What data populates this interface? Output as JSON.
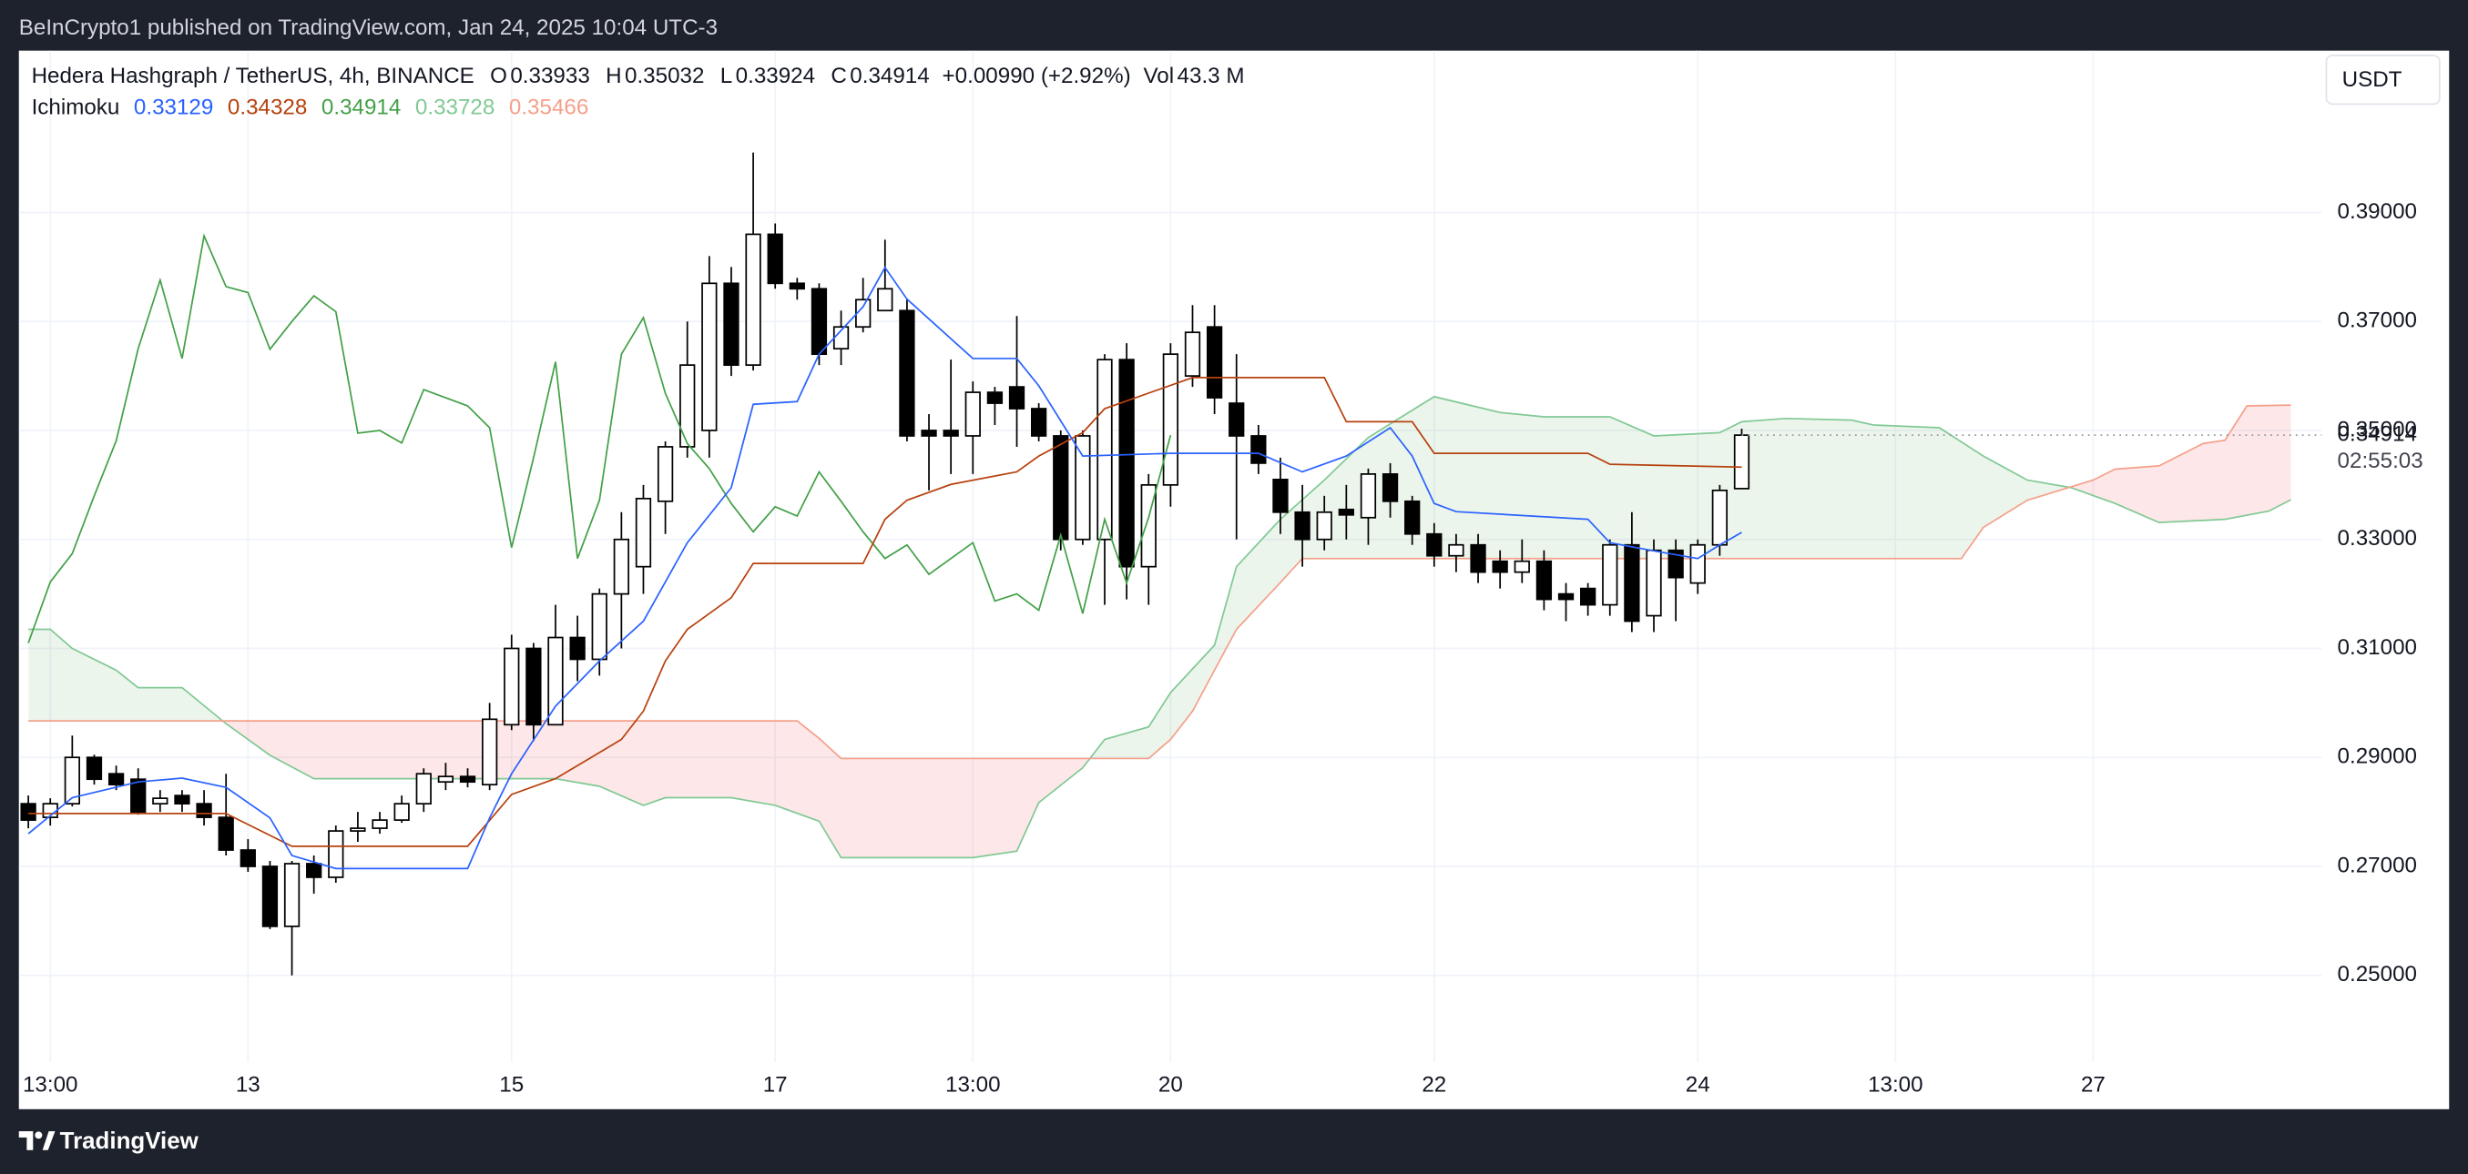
{
  "header": {
    "attribution": "BeInCrypto1 published on TradingView.com, Jan 24, 2025 10:04 UTC-3",
    "brand": "TradingView",
    "currency_button": "USDT"
  },
  "chart_data": {
    "type": "candlestick",
    "title": "Hedera Hashgraph / TetherUS, 4h, BINANCE",
    "ohlc_letters": [
      "O",
      "H",
      "L",
      "C"
    ],
    "change_label": "+0.00990 (+2.92%)",
    "volume_letter": "Vol",
    "volume_label": "43.3 M",
    "indicator": "Ichimoku",
    "countdown": "02:55:03",
    "up_color": "#ffffff",
    "down_color": "#000000",
    "border_color": "#000000",
    "x": [
      0,
      1,
      2,
      3,
      4,
      5,
      6,
      7,
      8,
      9,
      10,
      11,
      12,
      13,
      14,
      15,
      16,
      17,
      18,
      19,
      20,
      21,
      22,
      23,
      24,
      25,
      26,
      27,
      28,
      29,
      30,
      31,
      32,
      33,
      34,
      35,
      36,
      37,
      38,
      39,
      40,
      41,
      42,
      43,
      44,
      45,
      46,
      47,
      48,
      49,
      50,
      51,
      52,
      53,
      54,
      55,
      56,
      57,
      58,
      59,
      60,
      61,
      62,
      63,
      64,
      65,
      66,
      67,
      68,
      69,
      70,
      71,
      72,
      73,
      74,
      75,
      76,
      77,
      78
    ],
    "open": [
      0.2815,
      0.279,
      0.2815,
      0.29,
      0.287,
      0.286,
      0.2815,
      0.283,
      0.2815,
      0.279,
      0.273,
      0.27,
      0.259,
      0.2705,
      0.268,
      0.2765,
      0.277,
      0.2785,
      0.2815,
      0.2855,
      0.2865,
      0.285,
      0.296,
      0.31,
      0.296,
      0.312,
      0.308,
      0.32,
      0.325,
      0.337,
      0.347,
      0.35,
      0.377,
      0.362,
      0.386,
      0.377,
      0.376,
      0.365,
      0.369,
      0.372,
      0.372,
      0.35,
      0.35,
      0.349,
      0.357,
      0.358,
      0.354,
      0.349,
      0.33,
      0.33,
      0.363,
      0.325,
      0.34,
      0.36,
      0.369,
      0.355,
      0.349,
      0.341,
      0.335,
      0.33,
      0.3355,
      0.334,
      0.342,
      0.337,
      0.331,
      0.327,
      0.329,
      0.326,
      0.324,
      0.326,
      0.32,
      0.321,
      0.318,
      0.329,
      0.316,
      0.328,
      0.322,
      0.329,
      0.33933
    ],
    "high": [
      0.283,
      0.2825,
      0.294,
      0.2905,
      0.2885,
      0.288,
      0.284,
      0.284,
      0.284,
      0.287,
      0.275,
      0.271,
      0.271,
      0.272,
      0.2775,
      0.28,
      0.28,
      0.283,
      0.288,
      0.289,
      0.288,
      0.3,
      0.3125,
      0.311,
      0.318,
      0.316,
      0.321,
      0.335,
      0.34,
      0.348,
      0.37,
      0.382,
      0.38,
      0.401,
      0.388,
      0.378,
      0.377,
      0.372,
      0.378,
      0.385,
      0.374,
      0.353,
      0.363,
      0.359,
      0.358,
      0.371,
      0.355,
      0.35,
      0.35,
      0.364,
      0.366,
      0.342,
      0.366,
      0.373,
      0.373,
      0.364,
      0.351,
      0.345,
      0.34,
      0.338,
      0.34,
      0.343,
      0.344,
      0.338,
      0.333,
      0.331,
      0.331,
      0.328,
      0.33,
      0.328,
      0.322,
      0.322,
      0.33,
      0.335,
      0.33,
      0.33,
      0.33,
      0.34,
      0.35032
    ],
    "low": [
      0.277,
      0.2775,
      0.281,
      0.285,
      0.284,
      0.2795,
      0.28,
      0.28,
      0.2775,
      0.272,
      0.269,
      0.2585,
      0.25,
      0.265,
      0.267,
      0.2745,
      0.276,
      0.278,
      0.28,
      0.284,
      0.2845,
      0.284,
      0.295,
      0.293,
      0.296,
      0.304,
      0.305,
      0.31,
      0.32,
      0.331,
      0.345,
      0.345,
      0.36,
      0.361,
      0.376,
      0.374,
      0.362,
      0.362,
      0.368,
      0.372,
      0.348,
      0.339,
      0.342,
      0.342,
      0.351,
      0.347,
      0.348,
      0.328,
      0.329,
      0.318,
      0.319,
      0.318,
      0.336,
      0.358,
      0.353,
      0.33,
      0.342,
      0.331,
      0.325,
      0.328,
      0.33,
      0.329,
      0.334,
      0.329,
      0.325,
      0.324,
      0.322,
      0.321,
      0.322,
      0.317,
      0.315,
      0.316,
      0.316,
      0.313,
      0.313,
      0.315,
      0.32,
      0.327,
      0.33924
    ],
    "close": [
      0.2785,
      0.2815,
      0.29,
      0.286,
      0.285,
      0.28,
      0.2825,
      0.2815,
      0.279,
      0.273,
      0.27,
      0.259,
      0.2705,
      0.268,
      0.2765,
      0.277,
      0.2785,
      0.2815,
      0.287,
      0.2865,
      0.2855,
      0.297,
      0.31,
      0.296,
      0.312,
      0.308,
      0.32,
      0.33,
      0.3375,
      0.347,
      0.362,
      0.377,
      0.362,
      0.386,
      0.377,
      0.376,
      0.364,
      0.369,
      0.374,
      0.376,
      0.349,
      0.349,
      0.349,
      0.357,
      0.355,
      0.354,
      0.349,
      0.33,
      0.349,
      0.363,
      0.325,
      0.34,
      0.364,
      0.368,
      0.356,
      0.349,
      0.344,
      0.335,
      0.33,
      0.335,
      0.3345,
      0.342,
      0.337,
      0.331,
      0.327,
      0.329,
      0.324,
      0.324,
      0.326,
      0.319,
      0.319,
      0.318,
      0.329,
      0.315,
      0.328,
      0.323,
      0.329,
      0.339,
      0.34914
    ],
    "ichimoku": {
      "conversion_line": {
        "color": "#2962ff",
        "x": [
          0,
          2,
          5,
          7,
          9,
          11,
          12,
          14,
          20,
          21,
          22,
          24,
          26,
          28,
          30,
          32,
          33,
          35,
          36,
          38,
          39,
          40,
          43,
          45,
          46,
          48,
          52,
          56,
          58,
          60,
          62,
          63,
          64,
          65,
          71,
          72,
          74,
          76,
          77,
          78
        ],
        "values": [
          0.276,
          0.2826,
          0.2855,
          0.2862,
          0.2845,
          0.2789,
          0.272,
          0.2696,
          0.2696,
          0.2789,
          0.287,
          0.2994,
          0.3077,
          0.315,
          0.3294,
          0.3395,
          0.3548,
          0.3553,
          0.364,
          0.3727,
          0.3799,
          0.3741,
          0.3632,
          0.3632,
          0.3582,
          0.3453,
          0.3458,
          0.3458,
          0.3424,
          0.3453,
          0.3505,
          0.3453,
          0.3366,
          0.3351,
          0.3337,
          0.3294,
          0.3279,
          0.3265,
          0.329,
          0.33129
        ]
      },
      "base_line": {
        "color": "#b7410e",
        "x": [
          0,
          9,
          12,
          20,
          22,
          24,
          27,
          28,
          29,
          30,
          32,
          33,
          38,
          39,
          40,
          42,
          45,
          46,
          48,
          49,
          53,
          59,
          60,
          63,
          64,
          71,
          72,
          78
        ],
        "values": [
          0.2797,
          0.2797,
          0.2737,
          0.2737,
          0.2832,
          0.2861,
          0.2933,
          0.2985,
          0.3077,
          0.3135,
          0.3193,
          0.3256,
          0.3256,
          0.3337,
          0.3372,
          0.3401,
          0.3424,
          0.3453,
          0.3496,
          0.354,
          0.3597,
          0.3597,
          0.3516,
          0.3516,
          0.3458,
          0.3458,
          0.3438,
          0.34328
        ]
      },
      "lagging_span": {
        "color": "#43a047",
        "x": [
          0,
          1,
          2,
          3,
          4,
          5,
          6,
          7,
          8,
          9,
          10,
          11,
          12,
          13,
          14,
          15,
          16,
          17,
          18,
          19,
          20,
          21,
          22,
          23,
          24,
          25,
          26,
          27,
          28,
          29,
          30,
          31,
          32,
          33,
          34,
          35,
          36,
          37,
          38,
          39,
          40,
          41,
          42,
          43,
          44,
          45,
          46,
          47,
          48,
          49,
          50,
          51,
          52
        ],
        "values": [
          0.311,
          0.3222,
          0.3274,
          0.338,
          0.3481,
          0.365,
          0.3776,
          0.3632,
          0.3857,
          0.3764,
          0.3753,
          0.3649,
          0.37,
          0.3747,
          0.3718,
          0.3495,
          0.35,
          0.3477,
          0.3575,
          0.356,
          0.3545,
          0.3505,
          0.3285,
          0.345,
          0.3626,
          0.3265,
          0.3372,
          0.364,
          0.3707,
          0.3568,
          0.3476,
          0.343,
          0.3366,
          0.3314,
          0.336,
          0.3343,
          0.3424,
          0.337,
          0.3314,
          0.3265,
          0.329,
          0.3236,
          0.3265,
          0.3294,
          0.3187,
          0.32,
          0.317,
          0.3308,
          0.3164,
          0.3337,
          0.322,
          0.334,
          0.34914
        ]
      },
      "leading_span_a": {
        "color": "#81c995",
        "x": [
          0,
          1,
          2,
          4,
          5,
          7,
          9,
          11,
          13,
          20,
          24,
          26,
          28,
          29,
          32,
          34,
          36,
          37,
          43,
          45,
          46,
          48,
          49,
          51,
          52,
          54,
          55,
          57,
          59,
          61,
          64,
          67,
          69,
          72,
          74,
          77,
          78,
          80,
          83,
          84,
          87,
          89,
          91,
          93,
          95,
          97,
          100,
          102,
          103
        ],
        "values": [
          0.3135,
          0.3135,
          0.31,
          0.306,
          0.3028,
          0.3028,
          0.2962,
          0.2904,
          0.2861,
          0.2861,
          0.2861,
          0.2847,
          0.2812,
          0.2826,
          0.2826,
          0.2812,
          0.2783,
          0.2716,
          0.2716,
          0.2728,
          0.2817,
          0.2881,
          0.2933,
          0.2956,
          0.3019,
          0.3106,
          0.325,
          0.3337,
          0.3409,
          0.3487,
          0.3562,
          0.3533,
          0.3525,
          0.3525,
          0.349,
          0.3496,
          0.3516,
          0.3522,
          0.3519,
          0.351,
          0.3505,
          0.3453,
          0.3409,
          0.3395,
          0.3366,
          0.3331,
          0.3337,
          0.3352,
          0.33728
        ]
      },
      "leading_span_b": {
        "color": "#f5a08a",
        "x": [
          0,
          9,
          35,
          36,
          37,
          51,
          52,
          53,
          55,
          57,
          58,
          88,
          89,
          91,
          94,
          95,
          97,
          99,
          100,
          101,
          103
        ],
        "values": [
          0.2967,
          0.2967,
          0.2967,
          0.2935,
          0.2898,
          0.2898,
          0.2933,
          0.2985,
          0.3135,
          0.3221,
          0.3265,
          0.3265,
          0.3322,
          0.3372,
          0.3409,
          0.3429,
          0.3435,
          0.3476,
          0.3482,
          0.3545,
          0.35466
        ]
      },
      "cloud_up_color": "rgba(67,160,71,0.10)",
      "cloud_down_color": "rgba(242,54,69,0.12)"
    },
    "xlim": [
      -0.43,
      104.4
    ],
    "ylim": [
      0.2341,
      0.4197
    ],
    "yticks": [
      {
        "value": 0.25,
        "label": "0.25000"
      },
      {
        "value": 0.27,
        "label": "0.27000"
      },
      {
        "value": 0.29,
        "label": "0.29000"
      },
      {
        "value": 0.31,
        "label": "0.31000"
      },
      {
        "value": 0.33,
        "label": "0.33000"
      },
      {
        "value": 0.35,
        "label": "0.35000"
      },
      {
        "value": 0.37,
        "label": "0.37000"
      },
      {
        "value": 0.39,
        "label": "0.39000"
      }
    ],
    "xticks": [
      {
        "value": 1,
        "label": "13:00"
      },
      {
        "value": 10,
        "label": "13"
      },
      {
        "value": 22,
        "label": "15"
      },
      {
        "value": 34,
        "label": "17"
      },
      {
        "value": 43,
        "label": "13:00"
      },
      {
        "value": 52,
        "label": "20"
      },
      {
        "value": 64,
        "label": "22"
      },
      {
        "value": 76,
        "label": "24"
      },
      {
        "value": 85,
        "label": "13:00"
      },
      {
        "value": 94,
        "label": "27"
      }
    ],
    "grid": true
  }
}
